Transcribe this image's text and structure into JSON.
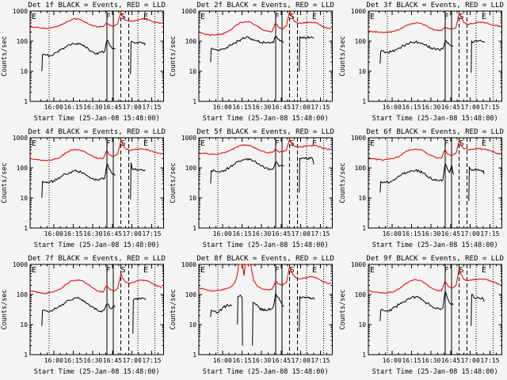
{
  "colors": {
    "events_black": "#000000",
    "lld_red": "#dd0000",
    "background": "#f4f4f4"
  },
  "chart_data": {
    "type": "line",
    "layout": {
      "rows": 3,
      "cols": 3,
      "y_scale": "log"
    },
    "legend": {
      "black": "Events",
      "red": "LLD"
    },
    "x_axis": {
      "label": "Start Time (25-Jan-08 15:48:00)",
      "range_minutes": [
        0,
        102
      ],
      "minor_step": 5,
      "ticks": [
        {
          "m": 18,
          "label": "16:00"
        },
        {
          "m": 33,
          "label": "16:15"
        },
        {
          "m": 48,
          "label": "16:30"
        },
        {
          "m": 63,
          "label": "16:45"
        },
        {
          "m": 78,
          "label": "17:00"
        },
        {
          "m": 93,
          "label": "17:15"
        }
      ]
    },
    "y_axis": {
      "label": "Counts/sec",
      "scale": "log",
      "range": [
        1,
        1000
      ],
      "tick_labels": [
        "1",
        "10",
        "100",
        "1000"
      ]
    },
    "markers": {
      "dotted": [
        14.6,
        82.3,
        95.3
      ],
      "solid": [
        58.7,
        63.7
      ],
      "dashed": [
        69.3,
        75.4
      ],
      "flags": [
        {
          "x": 3,
          "label": "E"
        },
        {
          "x": 59.8,
          "label": "F"
        },
        {
          "x": 71.2,
          "label": "S"
        },
        {
          "x": 88.5,
          "label": "E"
        }
      ]
    },
    "grids": {
      "red_x": [
        0,
        4,
        8,
        12,
        16,
        20,
        24,
        28,
        32,
        36,
        40,
        44,
        48,
        52,
        56,
        58.5,
        61,
        64,
        67,
        69.5,
        71,
        73,
        76,
        79,
        82,
        85,
        88,
        91,
        95,
        101
      ],
      "black_x": [
        9,
        9.4,
        12,
        15,
        18,
        21,
        24,
        27,
        30,
        33,
        36,
        39,
        42,
        45,
        48,
        51,
        54,
        57,
        58.8,
        60.5,
        62,
        63.7,
        65
      ]
    },
    "panels": [
      {
        "detector": "1f",
        "title": "Det 1f BLACK = Events, RED = LLD",
        "red": [
          {
            "x_ref": "red_x",
            "y": [
              310,
              290,
              275,
              270,
              280,
              300,
              350,
              450,
              530,
              550,
              480,
              380,
              320,
              300,
              305,
              420,
              320,
              315,
              380,
              900,
              650,
              500,
              450,
              470,
              510,
              550,
              540,
              500,
              430,
              390
            ]
          }
        ],
        "black": [
          {
            "x_ref": "black_x",
            "y": [
              10,
              35,
              34,
              33,
              37,
              44,
              55,
              65,
              75,
              83,
              85,
              76,
              64,
              52,
              44,
              40,
              42,
              46,
              110,
              82,
              66,
              58,
              54
            ]
          },
          {
            "x": [
              76.8,
              77.2,
              79,
              81,
              83,
              85,
              87,
              87.6,
              88
            ],
            "y": [
              8,
              95,
              90,
              88,
              91,
              89,
              87,
              86,
              72
            ]
          }
        ]
      },
      {
        "detector": "2f",
        "title": "Det 2f BLACK = Events, RED = LLD",
        "red": [
          {
            "x_ref": "red_x",
            "y": [
              195,
              175,
              162,
              158,
              168,
              185,
              230,
              320,
              420,
              455,
              420,
              330,
              250,
              215,
              205,
              400,
              280,
              255,
              330,
              1000,
              700,
              450,
              390,
              400,
              420,
              430,
              420,
              390,
              300,
              250
            ]
          }
        ],
        "black": [
          {
            "x_ref": "black_x",
            "y": [
              20,
              55,
              54,
              50,
              55,
              62,
              72,
              85,
              100,
              118,
              133,
              128,
              112,
              98,
              90,
              86,
              85,
              88,
              150,
              118,
              100,
              95,
              92
            ]
          },
          {
            "x": [
              76.8,
              77.2,
              79,
              81,
              83,
              85,
              87,
              88
            ],
            "y": [
              10,
              140,
              136,
              132,
              130,
              134,
              131,
              125
            ]
          }
        ]
      },
      {
        "detector": "3f",
        "title": "Det 3f BLACK = Events, RED = LLD",
        "red": [
          {
            "x_ref": "red_x",
            "y": [
              215,
              205,
              195,
              190,
              198,
              215,
              245,
              320,
              380,
              400,
              390,
              330,
              265,
              230,
              225,
              300,
              260,
              250,
              290,
              850,
              600,
              420,
              360,
              380,
              410,
              430,
              425,
              405,
              340,
              310
            ]
          }
        ],
        "black": [
          {
            "x_ref": "black_x",
            "y": [
              18,
              45,
              44,
              42,
              46,
              52,
              60,
              70,
              80,
              90,
              95,
              90,
              80,
              68,
              60,
              55,
              52,
              55,
              105,
              85,
              75,
              70,
              67
            ]
          },
          {
            "x": [
              78.6,
              79,
              81,
              83,
              85,
              87,
              88.5,
              89
            ],
            "y": [
              9,
              100,
              100,
              97,
              103,
              98,
              96,
              90
            ]
          }
        ]
      },
      {
        "detector": "4f",
        "title": "Det 4f BLACK = Events, RED = LLD",
        "red": [
          {
            "x_ref": "red_x",
            "y": [
              205,
              190,
              178,
              174,
              182,
              200,
              240,
              330,
              395,
              400,
              375,
              300,
              240,
              205,
              208,
              380,
              265,
              245,
              290,
              800,
              560,
              430,
              380,
              395,
              415,
              420,
              405,
              380,
              330,
              300
            ]
          }
        ],
        "black": [
          {
            "x_ref": "black_x",
            "y": [
              10,
              35,
              34,
              33,
              37,
              43,
              52,
              62,
              71,
              77,
              78,
              72,
              62,
              52,
              45,
              40,
              42,
              45,
              140,
              92,
              72,
              60,
              56
            ]
          },
          {
            "x": [
              76.8,
              77.2,
              78,
              80,
              82,
              84,
              86,
              87.5,
              88
            ],
            "y": [
              9,
              150,
              95,
              88,
              85,
              88,
              86,
              84,
              78
            ]
          }
        ]
      },
      {
        "detector": "5f",
        "title": "Det 5f BLACK = Events, RED = LLD",
        "red": [
          {
            "x_ref": "red_x",
            "y": [
              315,
              298,
              285,
              282,
              295,
              320,
              380,
              470,
              560,
              580,
              540,
              440,
              360,
              320,
              325,
              430,
              345,
              335,
              390,
              900,
              650,
              520,
              480,
              500,
              530,
              550,
              545,
              520,
              450,
              400
            ]
          }
        ],
        "black": [
          {
            "x_ref": "black_x",
            "y": [
              30,
              80,
              79,
              76,
              80,
              90,
              108,
              132,
              158,
              180,
              195,
              188,
              165,
              138,
              115,
              98,
              92,
              96,
              160,
              132,
              116,
              120,
              118
            ]
          },
          {
            "x": [
              76.8,
              77.2,
              79,
              81,
              83,
              85,
              87,
              88
            ],
            "y": [
              15,
              210,
              206,
              202,
              200,
              205,
              200,
              130
            ]
          }
        ]
      },
      {
        "detector": "6f",
        "title": "Det 6f BLACK = Events, RED = LLD",
        "red": [
          {
            "x_ref": "red_x",
            "y": [
              215,
              200,
              188,
              184,
              192,
              210,
              250,
              330,
              400,
              420,
              400,
              320,
              255,
              215,
              210,
              400,
              280,
              252,
              300,
              800,
              560,
              430,
              400,
              415,
              425,
              430,
              420,
              405,
              340,
              280
            ]
          }
        ],
        "black": [
          {
            "x_ref": "black_x",
            "y": [
              15,
              35,
              34,
              33,
              37,
              44,
              53,
              63,
              73,
              80,
              82,
              76,
              66,
              54,
              45,
              38,
              37,
              41,
              140,
              90,
              70,
              125,
              60
            ]
          },
          {
            "x": [
              76.8,
              77.2,
              78.5,
              80.5,
              82.5,
              84.5,
              86.5,
              88,
              88.6
            ],
            "y": [
              8,
              105,
              86,
              83,
              85,
              83,
              82,
              80,
              62
            ]
          }
        ]
      },
      {
        "detector": "7f",
        "title": "Det 7f BLACK = Events, RED = LLD",
        "red": [
          {
            "x_ref": "red_x",
            "y": [
              135,
              122,
              112,
              110,
              117,
              132,
              160,
              225,
              285,
              305,
              285,
              220,
              165,
              130,
              122,
              200,
              145,
              128,
              160,
              480,
              330,
              260,
              235,
              255,
              285,
              300,
              290,
              265,
              210,
              170
            ]
          }
        ],
        "black": [
          {
            "x_ref": "black_x",
            "y": [
              9,
              30,
              29,
              28,
              31,
              37,
              44,
              53,
              64,
              72,
              75,
              70,
              59,
              47,
              38,
              31,
              28,
              32,
              48,
              40,
              34,
              42,
              38
            ]
          },
          {
            "x": [
              78.6,
              79,
              81,
              83,
              85,
              86.5,
              87.5,
              88.5
            ],
            "y": [
              5,
              65,
              70,
              74,
              72,
              76,
              73,
              68
            ]
          }
        ]
      },
      {
        "detector": "8f",
        "title": "Det 8f BLACK = Events, RED = LLD",
        "red": [
          {
            "x": [
              0,
              4,
              8,
              12,
              16,
              20,
              24,
              27,
              29,
              31,
              33,
              34.5,
              35.5,
              37,
              39,
              40.5,
              42,
              45,
              48,
              52,
              56,
              58.8,
              61,
              64,
              67,
              69.5,
              71,
              73,
              76,
              80,
              84,
              87,
              90,
              93,
              95,
              101
            ],
            "y": [
              168,
              148,
              135,
              130,
              138,
              150,
              175,
              230,
              380,
              1500,
              1500,
              420,
              1500,
              1500,
              1500,
              600,
              280,
              185,
              155,
              142,
              148,
              280,
              225,
              200,
              250,
              850,
              560,
              400,
              330,
              355,
              380,
              390,
              360,
              300,
              260,
              230
            ]
          }
        ],
        "black": [
          {
            "x": [
              9,
              9.4,
              12,
              15,
              18,
              21,
              24,
              25.5
            ],
            "y": [
              18,
              30,
              28,
              25,
              35,
              42,
              45,
              43
            ]
          },
          {
            "x": [
              29.5,
              29.9,
              31,
              32.5,
              33.1,
              33.4
            ],
            "y": [
              10,
              85,
              88,
              85,
              80,
              2
            ]
          },
          {
            "x": [
              41,
              41.4,
              43,
              45,
              47,
              49,
              51,
              53,
              55,
              57,
              58.8,
              60.5,
              62,
              63.7,
              65
            ],
            "y": [
              2,
              55,
              50,
              42,
              31,
              33,
              29,
              31,
              33,
              40,
              110,
              80,
              64,
              45,
              40
            ]
          },
          {
            "x": [
              76.8,
              77.2,
              79,
              81,
              83,
              85,
              87,
              88.5
            ],
            "y": [
              6,
              85,
              80,
              78,
              82,
              80,
              75,
              68
            ]
          }
        ]
      },
      {
        "detector": "9f",
        "title": "Det 9f BLACK = Events, RED = LLD",
        "red": [
          {
            "x_ref": "red_x",
            "y": [
              135,
              122,
              113,
              110,
              116,
              130,
              158,
              222,
              282,
              305,
              290,
              225,
              170,
              140,
              133,
              280,
              185,
              162,
              200,
              750,
              450,
              330,
              285,
              300,
              315,
              330,
              320,
              305,
              260,
              215
            ]
          }
        ],
        "black": [
          {
            "x_ref": "black_x",
            "y": [
              13,
              30,
              29,
              28,
              33,
              40,
              48,
              58,
              70,
              80,
              82,
              76,
              64,
              51,
              42,
              35,
              33,
              36,
              130,
              75,
              55,
              48,
              45
            ]
          },
          {
            "x": [
              78.6,
              79,
              81,
              83,
              85,
              87,
              88,
              88.6
            ],
            "y": [
              9,
              100,
              76,
              78,
              75,
              80,
              70,
              58
            ]
          }
        ]
      }
    ]
  }
}
